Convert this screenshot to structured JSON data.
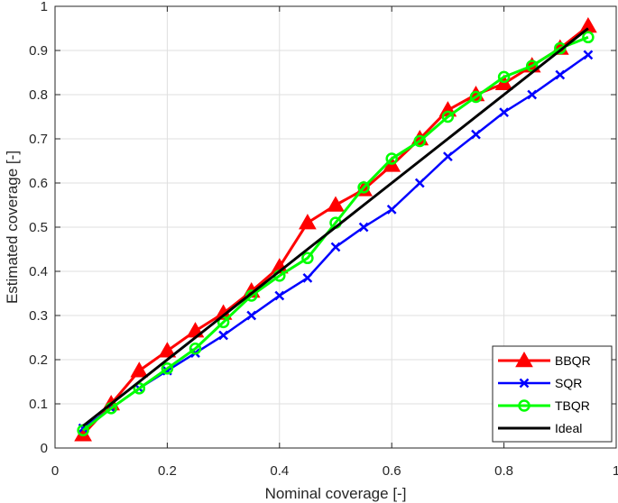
{
  "chart_data": {
    "type": "line",
    "xlabel": "Nominal coverage [-]",
    "ylabel": "Estimated coverage [-]",
    "xlim": [
      0,
      1
    ],
    "ylim": [
      0,
      1
    ],
    "xticks": [
      "0",
      "0.2",
      "0.4",
      "0.6",
      "0.8",
      "1"
    ],
    "xtick_values": [
      0,
      0.2,
      0.4,
      0.6,
      0.8,
      1
    ],
    "yticks": [
      "0",
      "0.1",
      "0.2",
      "0.3",
      "0.4",
      "0.5",
      "0.6",
      "0.7",
      "0.8",
      "0.9",
      "1"
    ],
    "ytick_values": [
      0,
      0.1,
      0.2,
      0.3,
      0.4,
      0.5,
      0.6,
      0.7,
      0.8,
      0.9,
      1
    ],
    "grid": true,
    "legend_position": "bottom-right",
    "x": [
      0.05,
      0.1,
      0.15,
      0.2,
      0.25,
      0.3,
      0.35,
      0.4,
      0.45,
      0.5,
      0.55,
      0.6,
      0.65,
      0.7,
      0.75,
      0.8,
      0.85,
      0.9,
      0.95
    ],
    "series": [
      {
        "name": "BBQR",
        "color": "#ff0000",
        "marker": "triangle",
        "values": [
          0.03,
          0.1,
          0.175,
          0.22,
          0.265,
          0.305,
          0.355,
          0.41,
          0.51,
          0.55,
          0.585,
          0.64,
          0.7,
          0.765,
          0.8,
          0.825,
          0.865,
          0.905,
          0.955
        ]
      },
      {
        "name": "SQR",
        "color": "#0000ff",
        "marker": "x",
        "values": [
          0.045,
          0.09,
          0.135,
          0.175,
          0.215,
          0.255,
          0.3,
          0.345,
          0.385,
          0.455,
          0.5,
          0.54,
          0.6,
          0.66,
          0.71,
          0.76,
          0.8,
          0.845,
          0.89
        ]
      },
      {
        "name": "TBQR",
        "color": "#00ff00",
        "marker": "circle",
        "values": [
          0.04,
          0.09,
          0.135,
          0.18,
          0.225,
          0.285,
          0.345,
          0.39,
          0.43,
          0.51,
          0.59,
          0.655,
          0.695,
          0.75,
          0.795,
          0.84,
          0.865,
          0.905,
          0.93
        ]
      },
      {
        "name": "Ideal",
        "color": "#000000",
        "marker": "none",
        "values": [
          0.05,
          0.1,
          0.15,
          0.2,
          0.25,
          0.3,
          0.35,
          0.4,
          0.45,
          0.5,
          0.55,
          0.6,
          0.65,
          0.7,
          0.75,
          0.8,
          0.85,
          0.9,
          0.95
        ]
      }
    ]
  }
}
